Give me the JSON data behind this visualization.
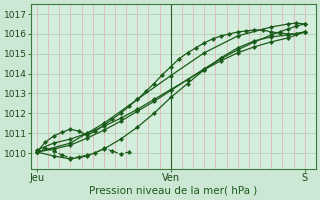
{
  "xlabel": "Pression niveau de la mer( hPa )",
  "xtick_labels": [
    "Jeu",
    "Ven",
    "S"
  ],
  "xtick_positions": [
    0,
    48,
    96
  ],
  "ylim": [
    1009.2,
    1017.5
  ],
  "ytick_vals": [
    1010,
    1011,
    1012,
    1013,
    1014,
    1015,
    1016,
    1017
  ],
  "xlim": [
    -2,
    100
  ],
  "bg_color": "#cce8d4",
  "plot_bg_color": "#d4eedd",
  "line_color": "#1a5a1a",
  "line1_x": [
    0,
    3,
    6,
    9,
    12,
    15,
    18,
    21,
    24,
    27,
    30,
    33,
    36,
    39,
    42,
    45,
    48,
    51,
    54,
    57,
    60,
    63,
    66,
    69,
    72,
    75,
    78,
    81,
    84,
    87,
    90,
    93,
    96
  ],
  "line1_y": [
    1010.05,
    1010.55,
    1010.85,
    1011.05,
    1011.2,
    1011.1,
    1010.9,
    1011.1,
    1011.4,
    1011.7,
    1012.0,
    1012.35,
    1012.7,
    1013.1,
    1013.5,
    1013.95,
    1014.35,
    1014.75,
    1015.05,
    1015.3,
    1015.55,
    1015.75,
    1015.9,
    1016.0,
    1016.1,
    1016.15,
    1016.2,
    1016.2,
    1016.1,
    1016.05,
    1016.0,
    1016.0,
    1016.1
  ],
  "line2_x": [
    0,
    6,
    12,
    18,
    24,
    30,
    36,
    42,
    48,
    54,
    60,
    66,
    72,
    78,
    84,
    90,
    96
  ],
  "line2_y": [
    1010.05,
    1009.85,
    1009.7,
    1009.85,
    1010.2,
    1010.7,
    1011.3,
    1012.0,
    1012.8,
    1013.5,
    1014.2,
    1014.8,
    1015.3,
    1015.65,
    1015.85,
    1015.95,
    1016.1
  ],
  "line3_x": [
    0,
    6,
    12,
    18,
    24,
    30,
    36,
    42,
    48,
    54,
    60,
    66,
    72,
    78,
    84,
    90,
    96
  ],
  "line3_y": [
    1010.15,
    1010.5,
    1010.7,
    1011.0,
    1011.35,
    1011.75,
    1012.2,
    1012.7,
    1013.2,
    1013.7,
    1014.2,
    1014.65,
    1015.05,
    1015.35,
    1015.6,
    1015.8,
    1016.1
  ],
  "line4_x": [
    0,
    6,
    12,
    18,
    24,
    30,
    36,
    42,
    48,
    54,
    60,
    66,
    72,
    78,
    84,
    87,
    90,
    93,
    96
  ],
  "line4_y": [
    1010.05,
    1010.2,
    1010.4,
    1010.75,
    1011.15,
    1011.6,
    1012.1,
    1012.6,
    1013.15,
    1013.7,
    1014.25,
    1014.75,
    1015.2,
    1015.6,
    1015.95,
    1016.1,
    1016.25,
    1016.4,
    1016.5
  ],
  "line5_x": [
    0,
    12,
    24,
    36,
    48,
    60,
    72,
    84,
    90,
    93,
    96
  ],
  "line5_y": [
    1010.05,
    1010.5,
    1011.5,
    1012.7,
    1013.9,
    1015.05,
    1015.9,
    1016.35,
    1016.5,
    1016.55,
    1016.5
  ],
  "dashed_x": [
    0,
    3,
    6,
    9,
    12,
    15,
    18,
    21,
    24,
    27,
    30,
    33
  ],
  "dashed_y": [
    1010.05,
    1010.25,
    1010.1,
    1009.9,
    1009.75,
    1009.8,
    1009.9,
    1010.0,
    1010.25,
    1010.1,
    1009.95,
    1010.05
  ],
  "n_vgrid": 25,
  "vgrid_color": "#e8aaaa",
  "hgrid_color": "#a8cca8"
}
